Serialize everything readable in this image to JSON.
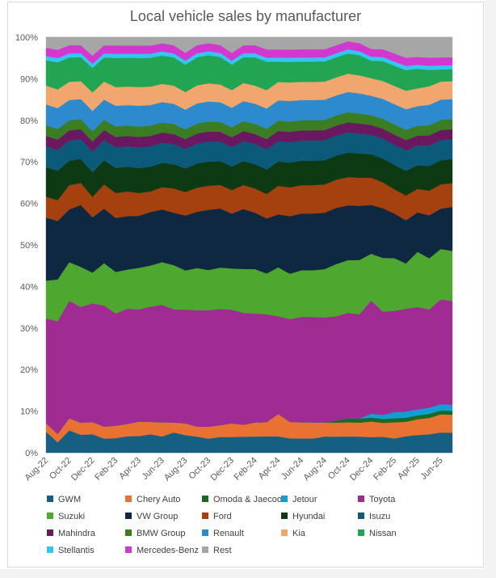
{
  "chart_data": {
    "type": "area",
    "stacked": "percent",
    "title": "Local vehicle sales by manufacturer",
    "xlabel": "",
    "ylabel": "",
    "ylim": [
      0,
      100
    ],
    "y_ticks": [
      "0%",
      "10%",
      "20%",
      "30%",
      "40%",
      "50%",
      "60%",
      "70%",
      "80%",
      "90%",
      "100%"
    ],
    "x_tick_labels": [
      "Aug-22",
      "Oct-22",
      "Dec-22",
      "Feb-23",
      "Apr-23",
      "Jun-23",
      "Aug-23",
      "Oct-23",
      "Dec-23",
      "Feb-24",
      "Apr-24",
      "Jun-24",
      "Aug-24",
      "Oct-24",
      "Dec-24",
      "Feb-25",
      "Apr-25",
      "Jun-25"
    ],
    "x": [
      "Aug-22",
      "Sep-22",
      "Oct-22",
      "Nov-22",
      "Dec-22",
      "Jan-23",
      "Feb-23",
      "Mar-23",
      "Apr-23",
      "May-23",
      "Jun-23",
      "Jul-23",
      "Aug-23",
      "Sep-23",
      "Oct-23",
      "Nov-23",
      "Dec-23",
      "Jan-24",
      "Feb-24",
      "Mar-24",
      "Apr-24",
      "May-24",
      "Jun-24",
      "Jul-24",
      "Aug-24",
      "Sep-24",
      "Oct-24",
      "Nov-24",
      "Dec-24",
      "Jan-25",
      "Feb-25",
      "Mar-25",
      "Apr-25",
      "May-25",
      "Jun-25",
      "Jul-25"
    ],
    "legend_position": "bottom",
    "series": [
      {
        "name": "GWM",
        "color": "#156082",
        "values": [
          5,
          2.5,
          5.5,
          4.5,
          4.5,
          3.5,
          3.5,
          4,
          4,
          4.5,
          4,
          5,
          4.5,
          4,
          3.5,
          4,
          4,
          4,
          4,
          4,
          4,
          3.5,
          3.5,
          3.5,
          4,
          4,
          4,
          4,
          4,
          4,
          3.5,
          4,
          4.5,
          4.5,
          5,
          5
        ]
      },
      {
        "name": "Chery Auto",
        "color": "#E97132",
        "values": [
          2,
          2,
          3,
          3,
          3,
          3,
          3,
          3,
          3.5,
          3,
          3.5,
          2.5,
          3,
          2.5,
          3,
          3,
          3.5,
          3,
          3.5,
          3.5,
          5.5,
          4,
          4,
          4,
          3.5,
          3.5,
          3.5,
          3.5,
          4,
          3.5,
          4,
          3.5,
          4,
          4,
          4.5,
          4.5
        ]
      },
      {
        "name": "Omoda & Jaecoo",
        "color": "#196B24",
        "values": [
          0,
          0,
          0,
          0,
          0,
          0,
          0,
          0,
          0,
          0,
          0,
          0,
          0,
          0,
          0,
          0,
          0,
          0,
          0,
          0,
          0,
          0,
          0,
          0,
          0,
          0.5,
          1,
          1,
          1,
          1,
          1,
          1,
          1,
          1,
          1,
          1
        ]
      },
      {
        "name": "Jetour",
        "color": "#0F9ED5",
        "values": [
          0,
          0,
          0,
          0,
          0,
          0,
          0,
          0,
          0,
          0,
          0,
          0,
          0,
          0,
          0,
          0,
          0,
          0,
          0,
          0,
          0,
          0,
          0,
          0,
          0,
          0,
          0,
          0,
          1,
          1,
          1.5,
          1.5,
          1.5,
          1.5,
          1.5,
          1.5
        ]
      },
      {
        "name": "Toyota",
        "color": "#A02B93",
        "values": [
          25,
          27,
          29,
          29,
          29,
          30,
          27,
          28,
          27,
          28,
          29,
          28,
          29,
          29,
          29,
          29.5,
          29,
          28,
          27,
          26.5,
          24,
          25,
          26,
          26,
          26,
          26,
          26,
          26,
          29,
          26,
          25,
          25,
          26,
          24,
          26,
          26
        ]
      },
      {
        "name": "Suzuki",
        "color": "#4EA72E",
        "values": [
          9,
          10,
          9.5,
          10,
          7.5,
          10.5,
          10,
          9.5,
          10,
          10,
          10.5,
          11,
          10,
          10.5,
          10,
          10.5,
          10.5,
          11,
          11,
          10,
          12,
          11,
          11.5,
          11.5,
          12,
          13,
          13,
          13.5,
          12,
          13.5,
          13,
          11,
          14,
          12.5,
          12.5,
          12.5
        ]
      },
      {
        "name": "VW Group",
        "color": "#0E2841",
        "values": [
          15,
          14,
          13,
          15.5,
          13.5,
          13.5,
          13,
          13,
          12.5,
          13,
          13,
          13,
          14,
          14,
          15,
          15,
          14,
          15,
          14,
          13.5,
          13,
          14,
          14,
          14,
          14,
          14,
          13.5,
          13.5,
          12.5,
          12.5,
          11,
          10.5,
          10,
          10.5,
          10,
          11
        ]
      },
      {
        "name": "Ford",
        "color": "#A5400F",
        "values": [
          5,
          5,
          6,
          5.5,
          5,
          6,
          6,
          6,
          5.5,
          5,
          5.5,
          6,
          6,
          6,
          6,
          6,
          6,
          6,
          6,
          6,
          7,
          7,
          7,
          7,
          7,
          7,
          7,
          7,
          7,
          6.5,
          6,
          6,
          6,
          6,
          6,
          6
        ]
      },
      {
        "name": "Hyundai",
        "color": "#0D3A12",
        "values": [
          7,
          7,
          6,
          6,
          6,
          6,
          6,
          6,
          6,
          6,
          6,
          6,
          6,
          6,
          6,
          6,
          6,
          6,
          6,
          6,
          6,
          6,
          6,
          6,
          6,
          6,
          6,
          6,
          6,
          6,
          6,
          6,
          6,
          6,
          6,
          6
        ]
      },
      {
        "name": "Isuzu",
        "color": "#0B5A7A",
        "values": [
          5,
          5,
          5,
          5,
          5,
          5,
          5,
          5,
          5,
          5,
          5,
          5,
          5,
          5,
          5,
          5,
          5,
          5,
          5,
          5,
          5,
          5,
          5,
          5,
          5,
          5,
          5,
          5,
          5,
          5,
          5,
          5,
          5,
          5,
          5,
          5
        ]
      },
      {
        "name": "Mahindra",
        "color": "#6A1961",
        "values": [
          2.5,
          2.5,
          2.5,
          2.5,
          2.5,
          2.5,
          2.5,
          2.5,
          2.5,
          2.5,
          2.5,
          2.5,
          2.5,
          2.5,
          2.5,
          2.5,
          2.5,
          2.5,
          2.5,
          2.5,
          2.5,
          2.5,
          2.5,
          2.5,
          2.5,
          2.5,
          2.5,
          2.5,
          2.5,
          2.5,
          2.5,
          2.5,
          2.5,
          2.5,
          2.5,
          2.5
        ]
      },
      {
        "name": "BMW Group",
        "color": "#3B7D23",
        "values": [
          2.5,
          2.5,
          2.5,
          2.5,
          2.5,
          2.5,
          2.5,
          2.5,
          2.5,
          2.5,
          2.5,
          2.5,
          2.5,
          2.5,
          2.5,
          2.5,
          2.5,
          2.5,
          2.5,
          2.5,
          2.5,
          2.5,
          2.5,
          2.5,
          2.5,
          2.5,
          2.5,
          2.5,
          2.5,
          2.5,
          2.5,
          2.5,
          2.5,
          2.5,
          2.5,
          2.5
        ]
      },
      {
        "name": "Renault",
        "color": "#2D8ACC",
        "values": [
          5,
          5,
          5,
          5,
          5,
          5,
          5,
          5,
          5,
          5,
          5,
          5,
          5,
          5,
          5,
          5,
          5,
          5,
          5,
          5,
          5,
          5,
          5,
          5,
          5,
          5,
          5,
          5,
          5,
          5,
          5,
          5,
          5,
          5,
          5,
          5
        ]
      },
      {
        "name": "Kia",
        "color": "#F1A66D",
        "values": [
          4.5,
          4.5,
          4.5,
          4.5,
          4.5,
          4.5,
          4.5,
          4.5,
          4.5,
          4.5,
          4.5,
          4.5,
          4.5,
          4.5,
          4.5,
          4.5,
          4.5,
          4.5,
          4.5,
          4.5,
          4.5,
          4.5,
          4.5,
          4.5,
          4.5,
          4.5,
          4.5,
          4.5,
          4.5,
          4.5,
          4.5,
          4.5,
          4.5,
          4.5,
          4.5,
          4.5
        ]
      },
      {
        "name": "Nissan",
        "color": "#21A553",
        "values": [
          6,
          6.5,
          6,
          6,
          6,
          6,
          7,
          7,
          7,
          7,
          7,
          7,
          7,
          7,
          7,
          7,
          6.5,
          6.5,
          7,
          7,
          5,
          5,
          5,
          5,
          5,
          5,
          5,
          5,
          4.5,
          5,
          5,
          5,
          5,
          4,
          3,
          3
        ]
      },
      {
        "name": "Stellantis",
        "color": "#33C6F3",
        "values": [
          1,
          1,
          1,
          1,
          1,
          1,
          1,
          1,
          1,
          1,
          1,
          1,
          1,
          1,
          1,
          1,
          1,
          1,
          1,
          1,
          1,
          1,
          1,
          1,
          1,
          1,
          1,
          1,
          1,
          1,
          1,
          1,
          1,
          1,
          1,
          1
        ]
      },
      {
        "name": "Mercedes-Benz",
        "color": "#D238CF",
        "values": [
          2,
          2,
          2,
          2,
          2,
          2,
          2,
          2,
          2,
          2,
          2,
          2,
          2,
          2,
          2,
          2,
          2,
          2,
          2,
          2,
          2,
          2,
          2,
          2,
          2,
          2,
          2,
          2,
          2,
          2,
          2,
          2,
          2,
          2,
          2,
          2
        ]
      },
      {
        "name": "Rest",
        "color": "#A6A6A6",
        "values": [
          2.5,
          3,
          2,
          2,
          4.5,
          2,
          2,
          2,
          2,
          2,
          1.5,
          2,
          4,
          2,
          1.5,
          2,
          4,
          2,
          2,
          3,
          3,
          3,
          3,
          3,
          3,
          2,
          1,
          1.5,
          3,
          3,
          4,
          5,
          5,
          5,
          5,
          5
        ]
      }
    ]
  }
}
